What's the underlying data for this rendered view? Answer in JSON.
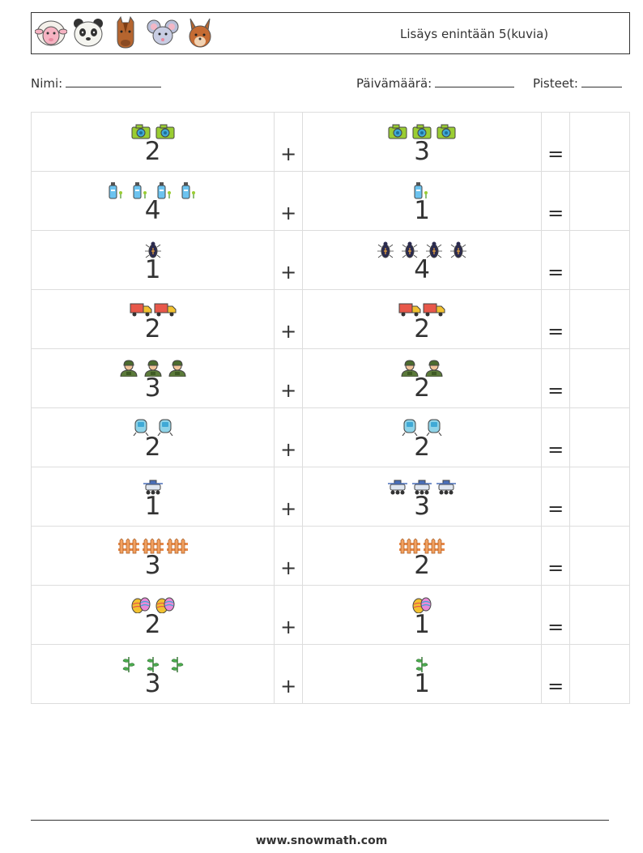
{
  "header": {
    "title": "Lisäys enintään 5(kuvia)",
    "animals": [
      "sheep-icon",
      "panda-icon",
      "horse-icon",
      "mouse-icon",
      "squirrel-icon"
    ]
  },
  "meta": {
    "name_label": "Nimi:",
    "date_label": "Päivämäärä:",
    "score_label": "Pisteet:"
  },
  "operators": {
    "plus": "+",
    "equals": "="
  },
  "rows": [
    {
      "icon": "camera-icon",
      "a": "2",
      "b": "3"
    },
    {
      "icon": "bottle-icon",
      "a": "4",
      "b": "1"
    },
    {
      "icon": "beetle-icon",
      "a": "1",
      "b": "4"
    },
    {
      "icon": "truck-icon",
      "a": "2",
      "b": "2"
    },
    {
      "icon": "soldier-icon",
      "a": "3",
      "b": "2"
    },
    {
      "icon": "train-icon",
      "a": "2",
      "b": "2"
    },
    {
      "icon": "rover-icon",
      "a": "1",
      "b": "3"
    },
    {
      "icon": "fence-icon",
      "a": "3",
      "b": "2"
    },
    {
      "icon": "easter-egg-icon",
      "a": "2",
      "b": "1"
    },
    {
      "icon": "sprout-icon",
      "a": "3",
      "b": "1"
    }
  ],
  "footer": {
    "text": "www.snowmath.com"
  }
}
